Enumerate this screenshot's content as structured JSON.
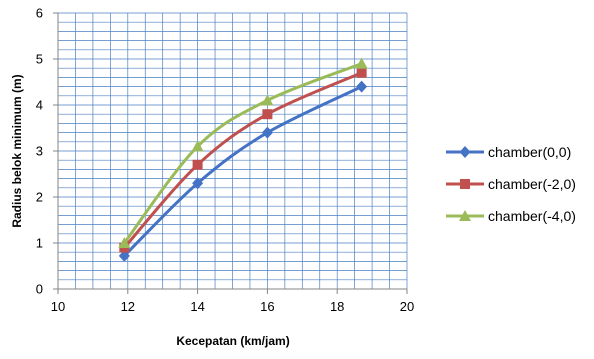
{
  "chart_data": {
    "type": "line",
    "title": "",
    "xlabel": "Kecepatan (km/jam)",
    "ylabel": "Radius belok minimum (m)",
    "xlim": [
      10,
      20
    ],
    "ylim": [
      0,
      6
    ],
    "x_ticks": [
      "10",
      "12",
      "14",
      "16",
      "18",
      "20"
    ],
    "y_ticks": [
      "0",
      "1",
      "2",
      "3",
      "4",
      "5",
      "6"
    ],
    "grid": true,
    "smooth": true,
    "legend_position": "right",
    "series": [
      {
        "name": "chamber(0,0)",
        "color": "#4472c4",
        "marker": "diamond",
        "x": [
          11.9,
          14,
          16,
          18.7
        ],
        "y": [
          0.72,
          2.3,
          3.4,
          4.4
        ]
      },
      {
        "name": "chamber(-2,0)",
        "color": "#c0504d",
        "marker": "square",
        "x": [
          11.9,
          14,
          16,
          18.7
        ],
        "y": [
          0.9,
          2.7,
          3.8,
          4.7
        ]
      },
      {
        "name": "chamber(-4,0)",
        "color": "#9bbb59",
        "marker": "triangle",
        "x": [
          11.9,
          14,
          16,
          18.7
        ],
        "y": [
          1.0,
          3.1,
          4.1,
          4.9
        ]
      }
    ]
  }
}
